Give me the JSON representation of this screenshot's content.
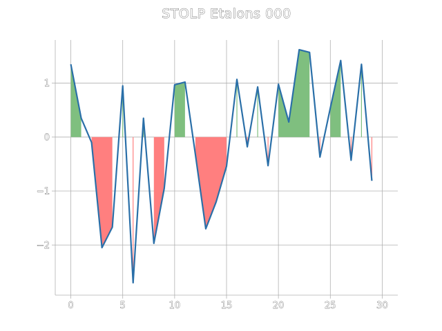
{
  "chart_data": {
    "type": "line",
    "title": "STOLP Etalons 000",
    "xlabel": "",
    "ylabel": "",
    "x": [
      0,
      1,
      2,
      3,
      4,
      5,
      6,
      7,
      8,
      9,
      10,
      11,
      12,
      13,
      14,
      15,
      16,
      17,
      18,
      19,
      20,
      21,
      22,
      23,
      24,
      25,
      26,
      27,
      28,
      29
    ],
    "series": [
      {
        "values": [
          1.35,
          0.35,
          -0.1,
          -2.05,
          -1.67,
          0.95,
          -2.7,
          0.35,
          -1.97,
          -0.95,
          0.97,
          1.02,
          -0.32,
          -1.7,
          -1.2,
          -0.54,
          1.07,
          -0.18,
          0.93,
          -0.53,
          0.98,
          0.28,
          1.62,
          1.57,
          -0.37,
          0.54,
          1.42,
          -0.43,
          1.35,
          -0.81
        ],
        "color": "#2a6fa8"
      }
    ],
    "fill_positive_color": "#7fbf7f",
    "fill_negative_color": "#ff7f7f",
    "xlim": [
      -1.5,
      31.5
    ],
    "ylim": [
      -2.93,
      1.8
    ],
    "xticks": [
      0,
      5,
      10,
      15,
      20,
      25,
      30
    ],
    "yticks": [
      1,
      0,
      -1,
      -2
    ],
    "ytick_labels": [
      "1",
      "0",
      "−1",
      "−2"
    ],
    "grid": true,
    "legend": "none"
  }
}
